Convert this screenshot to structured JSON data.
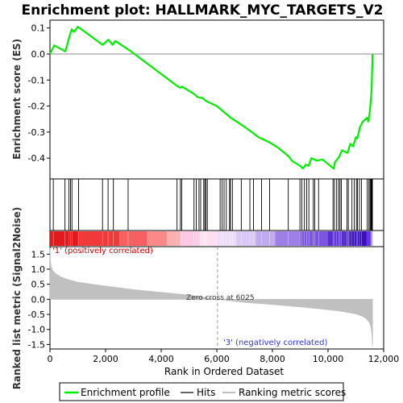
{
  "chart_data": {
    "type": "line",
    "title": "Enrichment plot: HALLMARK_MYC_TARGETS_V2",
    "xlabel": "Rank in Ordered Dataset",
    "ylabel_top": "Enrichment score (ES)",
    "ylabel_bottom": "Ranked list metric (Signal2Noise)",
    "xlim": [
      0,
      12000
    ],
    "x_ticks": [
      0,
      2000,
      4000,
      6000,
      8000,
      10000,
      12000
    ],
    "x_tick_labels": [
      "0",
      "2,000",
      "4,000",
      "6,000",
      "8,000",
      "10,000",
      "12,000"
    ],
    "es_ylim": [
      -0.48,
      0.13
    ],
    "es_ticks": [
      0.1,
      0.0,
      -0.1,
      -0.2,
      -0.3,
      -0.4
    ],
    "es_tick_labels": [
      "0.1",
      "0.0",
      "-0.1",
      "-0.2",
      "-0.3",
      "-0.4"
    ],
    "metric_ylim": [
      -1.65,
      1.75
    ],
    "metric_ticks": [
      1.5,
      1.0,
      0.5,
      0.0,
      -0.5,
      -1.0,
      -1.5
    ],
    "metric_tick_labels": [
      "1.5",
      "1.0",
      "0.5",
      "0.0",
      "-0.5",
      "-1.0",
      "-1.5"
    ],
    "n_genes": 11600,
    "zero_cross_rank": 6025,
    "zero_cross_label": "Zero cross at 6025",
    "positive_label": "'1' (positively correlated)",
    "negative_label": "'3' (negatively correlated)",
    "enrichment_profile": {
      "name": "Enrichment profile",
      "color": "#00ee00",
      "x": [
        0,
        150,
        550,
        680,
        780,
        870,
        1000,
        1900,
        2100,
        2250,
        2350,
        2800,
        2850,
        4600,
        4700,
        4750,
        5200,
        5300,
        5500,
        5600,
        6000,
        6500,
        7000,
        7500,
        7900,
        8200,
        8600,
        8700,
        9000,
        9100,
        9200,
        9300,
        9400,
        9600,
        9800,
        10200,
        10250,
        10400,
        10500,
        10700,
        10800,
        10900,
        11000,
        11050,
        11150,
        11250,
        11400,
        11450,
        11500,
        11550,
        11570,
        11580,
        11590,
        11600
      ],
      "y": [
        0.0,
        0.033,
        0.01,
        0.06,
        0.095,
        0.085,
        0.105,
        0.035,
        0.055,
        0.035,
        0.05,
        0.018,
        0.015,
        -0.125,
        -0.13,
        -0.125,
        -0.155,
        -0.165,
        -0.17,
        -0.18,
        -0.2,
        -0.245,
        -0.28,
        -0.32,
        -0.34,
        -0.36,
        -0.395,
        -0.41,
        -0.43,
        -0.44,
        -0.425,
        -0.43,
        -0.4,
        -0.41,
        -0.405,
        -0.44,
        -0.415,
        -0.395,
        -0.37,
        -0.38,
        -0.345,
        -0.355,
        -0.32,
        -0.325,
        -0.28,
        -0.26,
        -0.245,
        -0.26,
        -0.22,
        -0.16,
        -0.12,
        -0.08,
        -0.04,
        0.0
      ]
    },
    "hits": {
      "name": "Hits",
      "ranks": [
        120,
        540,
        680,
        740,
        790,
        1030,
        1890,
        2090,
        2280,
        2810,
        4570,
        4690,
        4740,
        5180,
        5260,
        5360,
        5420,
        5530,
        5570,
        5610,
        5660,
        6120,
        6190,
        6260,
        6340,
        6460,
        6490,
        6560,
        6880,
        7190,
        7320,
        7610,
        7900,
        8570,
        8990,
        9060,
        9150,
        9230,
        9310,
        9470,
        9520,
        9660,
        10180,
        10230,
        10310,
        10380,
        10430,
        10480,
        10680,
        10730,
        10860,
        10940,
        11020,
        11060,
        11130,
        11200,
        11410,
        11470,
        11510,
        11540,
        11560,
        11575,
        11585,
        11595
      ]
    },
    "ranking_metric": {
      "name": "Ranking metric scores",
      "color": "#c0c0c0",
      "x": [
        0,
        10,
        40,
        100,
        200,
        400,
        700,
        1000,
        1500,
        2000,
        3000,
        4000,
        5000,
        6025,
        7000,
        8000,
        9000,
        10000,
        10500,
        11000,
        11200,
        11350,
        11450,
        11500,
        11540,
        11570,
        11590,
        11600
      ],
      "y": [
        1.7,
        1.3,
        1.1,
        0.95,
        0.85,
        0.74,
        0.64,
        0.57,
        0.5,
        0.44,
        0.32,
        0.23,
        0.14,
        0.0,
        -0.1,
        -0.17,
        -0.25,
        -0.34,
        -0.4,
        -0.48,
        -0.55,
        -0.62,
        -0.72,
        -0.8,
        -0.9,
        -1.1,
        -1.35,
        -1.55
      ]
    },
    "colorbar": [
      {
        "x0": 0,
        "x1": 1000,
        "color": "#e31a1c"
      },
      {
        "x0": 1000,
        "x1": 2500,
        "color": "#f03a3a"
      },
      {
        "x0": 2500,
        "x1": 3500,
        "color": "#f56060"
      },
      {
        "x0": 3500,
        "x1": 4200,
        "color": "#f88a8a"
      },
      {
        "x0": 4200,
        "x1": 4700,
        "color": "#fbb0b0"
      },
      {
        "x0": 4700,
        "x1": 5400,
        "color": "#fcc8e4"
      },
      {
        "x0": 5400,
        "x1": 6025,
        "color": "#fde0f0"
      },
      {
        "x0": 6025,
        "x1": 6700,
        "color": "#ecdcf8"
      },
      {
        "x0": 6700,
        "x1": 7400,
        "color": "#d8c8f4"
      },
      {
        "x0": 7400,
        "x1": 8100,
        "color": "#c0aaf0"
      },
      {
        "x0": 8100,
        "x1": 9000,
        "color": "#9e7fe8"
      },
      {
        "x0": 9000,
        "x1": 10000,
        "color": "#7a55dd"
      },
      {
        "x0": 10000,
        "x1": 10800,
        "color": "#5a2fd0"
      },
      {
        "x0": 10800,
        "x1": 11600,
        "color": "#3a10c0"
      }
    ],
    "legend": {
      "entries": [
        {
          "label": "Enrichment profile",
          "color": "#00ee00"
        },
        {
          "label": "Hits",
          "color": "#000000"
        },
        {
          "label": "Ranking metric scores",
          "color": "#c0c0c0"
        }
      ]
    }
  }
}
